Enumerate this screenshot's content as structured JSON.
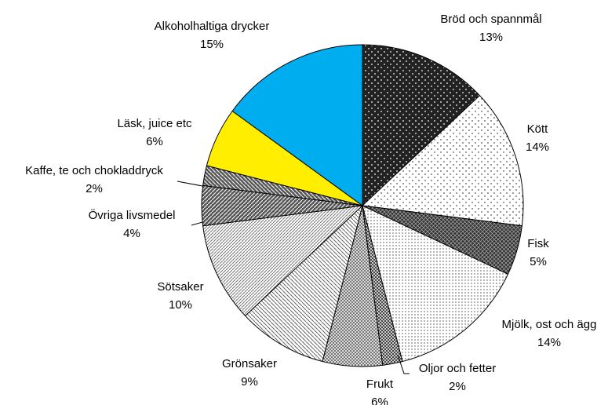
{
  "chart_data": {
    "type": "pie",
    "categories": [
      "Bröd och spannmål",
      "Kött",
      "Fisk",
      "Mjölk, ost och ägg",
      "Oljor och fetter",
      "Frukt",
      "Grönsaker",
      "Sötsaker",
      "Övriga livsmedel",
      "Kaffe, te och chokladdryck",
      "Läsk, juice etc",
      "Alkoholhaltiga drycker"
    ],
    "values": [
      13,
      14,
      5,
      14,
      2,
      6,
      9,
      10,
      4,
      2,
      6,
      15
    ],
    "value_labels": [
      "13%",
      "14%",
      "5%",
      "14%",
      "2%",
      "6%",
      "9%",
      "10%",
      "4%",
      "2%",
      "6%",
      "15%"
    ],
    "colors": [
      "#222222",
      "#ffffff",
      "#333333",
      "#ffffff",
      "#444444",
      "#ffffff",
      "#ffffff",
      "#ffffff",
      "#555555",
      "#555555",
      "#ffee00",
      "#00aeef"
    ]
  }
}
